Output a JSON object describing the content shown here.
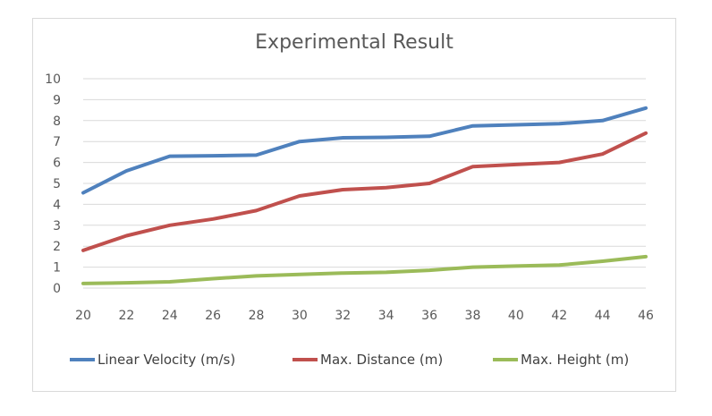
{
  "chart_data": {
    "type": "line",
    "title": "Experimental Result",
    "xlabel": "",
    "ylabel": "",
    "x": [
      20,
      22,
      24,
      26,
      28,
      30,
      32,
      34,
      36,
      38,
      40,
      42,
      44,
      46
    ],
    "x_tick_labels": [
      "20",
      "22",
      "24",
      "26",
      "28",
      "30",
      "32",
      "34",
      "36",
      "38",
      "40",
      "42",
      "44",
      "46"
    ],
    "y_tick_labels": [
      "0",
      "1",
      "2",
      "3",
      "4",
      "5",
      "6",
      "7",
      "8",
      "9",
      "10"
    ],
    "ylim": [
      0,
      10
    ],
    "grid": true,
    "legend_position": "bottom",
    "series": [
      {
        "name": "Linear Velocity (m/s)",
        "color": "#4f81bd",
        "values": [
          4.55,
          5.6,
          6.3,
          6.32,
          6.35,
          7.0,
          7.18,
          7.2,
          7.25,
          7.75,
          7.8,
          7.85,
          8.0,
          8.6
        ]
      },
      {
        "name": "Max. Distance (m)",
        "color": "#c0504d",
        "values": [
          1.8,
          2.5,
          3.0,
          3.3,
          3.7,
          4.4,
          4.7,
          4.8,
          5.0,
          5.8,
          5.9,
          6.0,
          6.4,
          7.4
        ]
      },
      {
        "name": "Max. Height (m)",
        "color": "#9bbb59",
        "values": [
          0.22,
          0.25,
          0.3,
          0.45,
          0.58,
          0.65,
          0.72,
          0.75,
          0.85,
          1.0,
          1.05,
          1.1,
          1.28,
          1.5
        ]
      }
    ]
  }
}
